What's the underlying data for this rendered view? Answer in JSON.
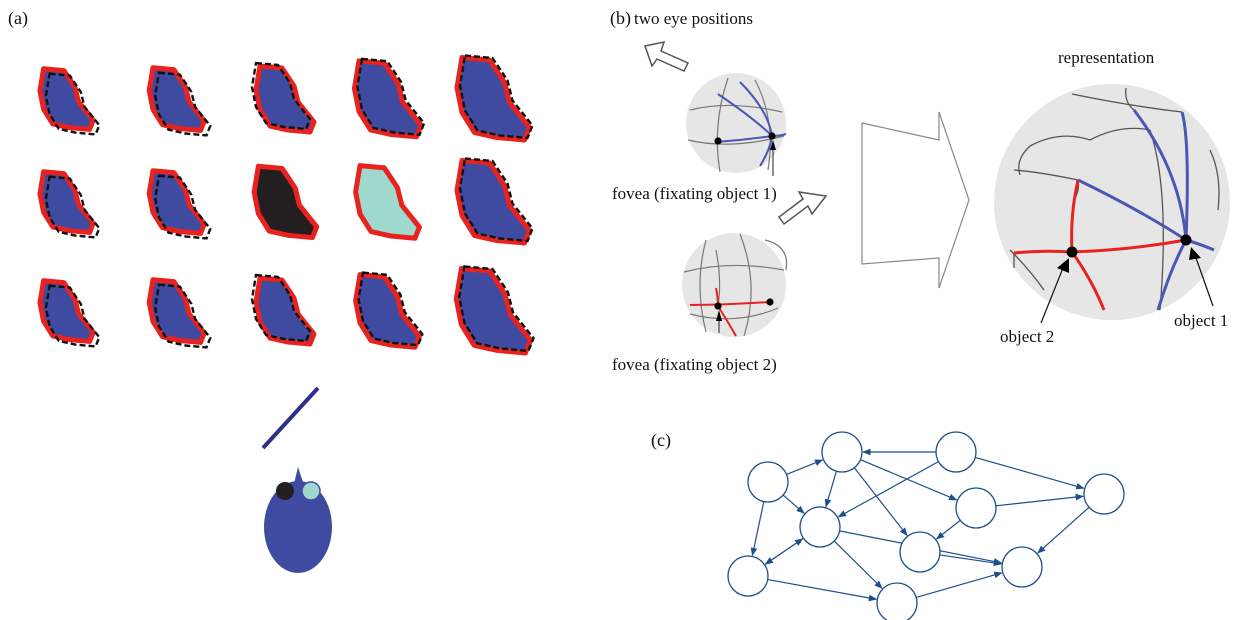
{
  "panel_a": {
    "label": "(a)"
  },
  "panel_b": {
    "label": "(b)",
    "title": "two eye positions",
    "fovea_1": "fovea (fixating object 1)",
    "fovea_2": "fovea (fixating object 2)",
    "representation": "representation",
    "object_1": "object 1",
    "object_2": "object 2"
  },
  "panel_c": {
    "label": "(c)"
  },
  "colors": {
    "shape_fill": "#3e4ba0",
    "outline_red": "#e8221f",
    "highlight_black": "#231f20",
    "highlight_teal": "#9fd8cc",
    "globe_grey": "#e6e6e6",
    "meridian_blue": "#4c56b5",
    "meridian_red": "#e8221f",
    "graph_blue": "#1f4e8c"
  }
}
